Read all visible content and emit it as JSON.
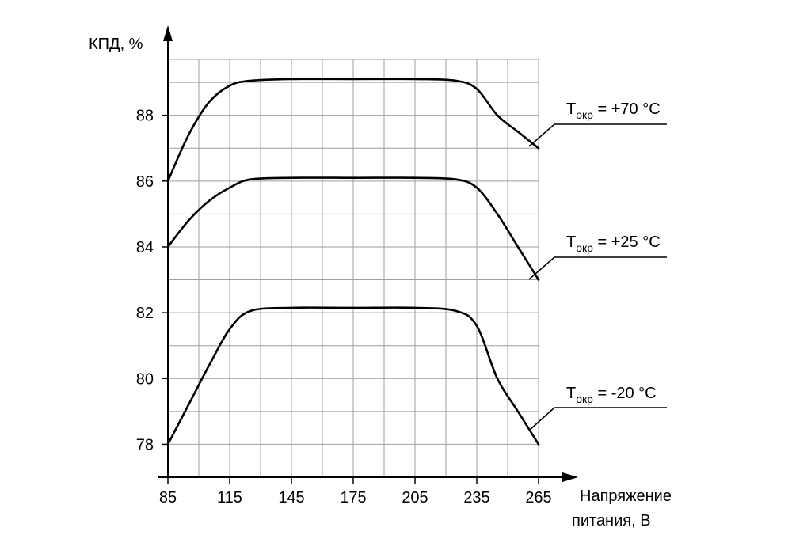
{
  "chart_data": {
    "type": "line",
    "ylabel": "КПД, %",
    "xlabel_line1": "Напряжение",
    "xlabel_line2": "питания, В",
    "xlim": [
      85,
      265
    ],
    "ylim": [
      77,
      89.7
    ],
    "x_ticks": [
      85,
      115,
      145,
      175,
      205,
      235,
      265
    ],
    "y_ticks": [
      78,
      80,
      82,
      84,
      86,
      88
    ],
    "grid": true,
    "series": [
      {
        "label_main": "T",
        "label_sub": "окр",
        "label_rest": " = +70 °C",
        "x": [
          85,
          95,
          105,
          115,
          125,
          145,
          175,
          205,
          225,
          235,
          245,
          255,
          265
        ],
        "y": [
          86.0,
          87.4,
          88.4,
          88.9,
          89.05,
          89.1,
          89.1,
          89.1,
          89.05,
          88.8,
          88.0,
          87.5,
          87.0
        ]
      },
      {
        "label_main": "T",
        "label_sub": "окр",
        "label_rest": " = +25 °C",
        "x": [
          85,
          95,
          105,
          115,
          125,
          145,
          175,
          205,
          225,
          235,
          245,
          255,
          265
        ],
        "y": [
          84.0,
          84.8,
          85.4,
          85.8,
          86.05,
          86.1,
          86.1,
          86.1,
          86.05,
          85.8,
          85.0,
          84.0,
          83.0
        ]
      },
      {
        "label_main": "T",
        "label_sub": "окр",
        "label_rest": " = -20 °C",
        "x": [
          85,
          95,
          105,
          115,
          125,
          145,
          175,
          205,
          225,
          235,
          245,
          255,
          265
        ],
        "y": [
          78.0,
          79.2,
          80.4,
          81.5,
          82.05,
          82.15,
          82.15,
          82.15,
          82.05,
          81.6,
          80.0,
          79.0,
          78.0
        ]
      }
    ]
  }
}
